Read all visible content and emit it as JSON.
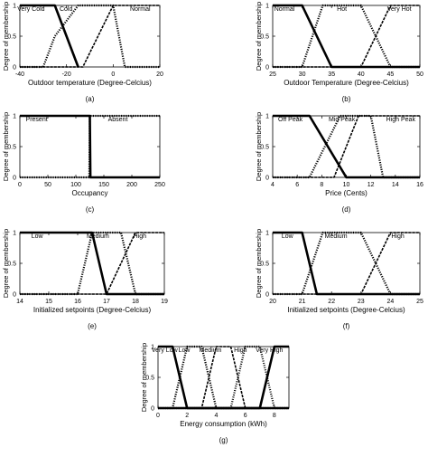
{
  "figure": {
    "colors": {
      "curve": "#000000",
      "background": "#ffffff"
    }
  },
  "chart_data": [
    {
      "type": "line",
      "caption": "(a)",
      "xlabel": "Outdoor temperature (Degree-Celcius)",
      "ylabel": "Degree of membership",
      "xlim": [
        -40,
        20
      ],
      "ylim": [
        0,
        1
      ],
      "xticks": [
        -40,
        -20,
        0,
        20
      ],
      "yticks": [
        0,
        0.5,
        1
      ],
      "series": [
        {
          "name": "Very Cold",
          "x": [
            -40,
            -30,
            -25,
            -15
          ],
          "y": [
            1,
            1,
            1,
            0
          ]
        },
        {
          "name": "Cold",
          "x": [
            -40,
            -30,
            -25,
            -15,
            -7,
            0,
            5,
            20
          ],
          "y": [
            0,
            0,
            0.5,
            1,
            1,
            1,
            0,
            0
          ]
        },
        {
          "name": "Normal",
          "x": [
            -40,
            -20,
            -13,
            0,
            10,
            20
          ],
          "y": [
            0,
            0,
            0,
            1,
            1,
            1
          ]
        }
      ]
    },
    {
      "type": "line",
      "caption": "(b)",
      "xlabel": "Outdoor Temperature (Degree-Celcius)",
      "ylabel": "Degree of membership",
      "xlim": [
        25,
        50
      ],
      "ylim": [
        0,
        1
      ],
      "xticks": [
        25,
        30,
        35,
        40,
        45,
        50
      ],
      "yticks": [
        0,
        0.5,
        1
      ],
      "series": [
        {
          "name": "Normal",
          "x": [
            25,
            30,
            35,
            50
          ],
          "y": [
            1,
            1,
            0,
            0
          ]
        },
        {
          "name": "Hot",
          "x": [
            25,
            30,
            33.5,
            40,
            45,
            50
          ],
          "y": [
            0,
            0,
            1,
            1,
            0,
            0
          ]
        },
        {
          "name": "Very Hot",
          "x": [
            25,
            40,
            45,
            50
          ],
          "y": [
            0,
            0,
            1,
            1
          ]
        }
      ]
    },
    {
      "type": "line",
      "caption": "(c)",
      "xlabel": "Occupancy",
      "ylabel": "Degree of membership",
      "xlim": [
        0,
        250
      ],
      "ylim": [
        0,
        1
      ],
      "xticks": [
        0,
        50,
        100,
        150,
        200,
        250
      ],
      "yticks": [
        0,
        0.5,
        1
      ],
      "series": [
        {
          "name": "Present",
          "x": [
            0,
            125,
            126,
            250
          ],
          "y": [
            1,
            1,
            0,
            0
          ]
        },
        {
          "name": "Absent",
          "x": [
            0,
            124,
            125,
            250
          ],
          "y": [
            0,
            0,
            1,
            1
          ]
        }
      ]
    },
    {
      "type": "line",
      "caption": "(d)",
      "xlabel": "Price (Cents)",
      "ylabel": "Degree of membership",
      "xlim": [
        4,
        16
      ],
      "ylim": [
        0,
        1
      ],
      "xticks": [
        4,
        6,
        8,
        10,
        12,
        14,
        16
      ],
      "yticks": [
        0,
        0.5,
        1
      ],
      "series": [
        {
          "name": "Off Peak",
          "x": [
            4,
            7,
            10,
            16
          ],
          "y": [
            1,
            1,
            0,
            0
          ]
        },
        {
          "name": "Mid Peak",
          "x": [
            4,
            7,
            9.5,
            12,
            13,
            16
          ],
          "y": [
            0,
            0,
            1,
            1,
            0,
            0
          ]
        },
        {
          "name": "High Peak",
          "x": [
            4,
            9,
            11,
            16
          ],
          "y": [
            0,
            0,
            1,
            1
          ]
        }
      ]
    },
    {
      "type": "line",
      "caption": "(e)",
      "xlabel": "Initialized setpoints (Degree-Celcius)",
      "ylabel": "Degree of membership",
      "xlim": [
        14,
        19
      ],
      "ylim": [
        0,
        1
      ],
      "xticks": [
        14,
        15,
        16,
        17,
        18,
        19
      ],
      "yticks": [
        0,
        0.5,
        1
      ],
      "series": [
        {
          "name": "Low",
          "x": [
            14,
            16.5,
            17,
            19
          ],
          "y": [
            1,
            1,
            0,
            0
          ]
        },
        {
          "name": "Medium",
          "x": [
            14,
            16,
            16.5,
            17.5,
            18,
            19
          ],
          "y": [
            0,
            0,
            1,
            1,
            0,
            0
          ]
        },
        {
          "name": "High",
          "x": [
            14,
            17,
            18,
            19
          ],
          "y": [
            0,
            0,
            1,
            1
          ]
        }
      ]
    },
    {
      "type": "line",
      "caption": "(f)",
      "xlabel": "Initialized setpoints (Degree-Celcius)",
      "ylabel": "Degree of membership",
      "xlim": [
        20,
        25
      ],
      "ylim": [
        0,
        1
      ],
      "xticks": [
        20,
        21,
        22,
        23,
        24,
        25
      ],
      "yticks": [
        0,
        0.5,
        1
      ],
      "series": [
        {
          "name": "Low",
          "x": [
            20,
            21,
            21.5,
            25
          ],
          "y": [
            1,
            1,
            0,
            0
          ]
        },
        {
          "name": "Medium",
          "x": [
            20,
            21,
            21.7,
            23,
            24,
            25
          ],
          "y": [
            0,
            0,
            1,
            1,
            0,
            0
          ]
        },
        {
          "name": "High",
          "x": [
            20,
            23,
            24,
            25
          ],
          "y": [
            0,
            0,
            1,
            1
          ]
        }
      ]
    },
    {
      "type": "line",
      "caption": "(g)",
      "xlabel": "Energy consumption (kWh)",
      "ylabel": "Degree of membership",
      "xlim": [
        0,
        9
      ],
      "ylim": [
        0,
        1
      ],
      "xticks": [
        0,
        2,
        4,
        6,
        8
      ],
      "yticks": [
        0,
        0.5,
        1
      ],
      "series": [
        {
          "name": "Very Low",
          "x": [
            0,
            1,
            2,
            9
          ],
          "y": [
            1,
            1,
            0,
            0
          ]
        },
        {
          "name": "Low",
          "x": [
            0,
            1,
            2,
            3,
            4,
            9
          ],
          "y": [
            0,
            0,
            1,
            1,
            0,
            0
          ]
        },
        {
          "name": "Medium",
          "x": [
            0,
            3,
            4,
            5,
            6,
            9
          ],
          "y": [
            0,
            0,
            1,
            1,
            0,
            0
          ]
        },
        {
          "name": "High",
          "x": [
            0,
            5,
            6,
            7,
            8,
            9
          ],
          "y": [
            0,
            0,
            1,
            1,
            0,
            0
          ]
        },
        {
          "name": "Very High",
          "x": [
            0,
            7,
            8,
            9
          ],
          "y": [
            0,
            0,
            1,
            1
          ]
        }
      ]
    }
  ]
}
